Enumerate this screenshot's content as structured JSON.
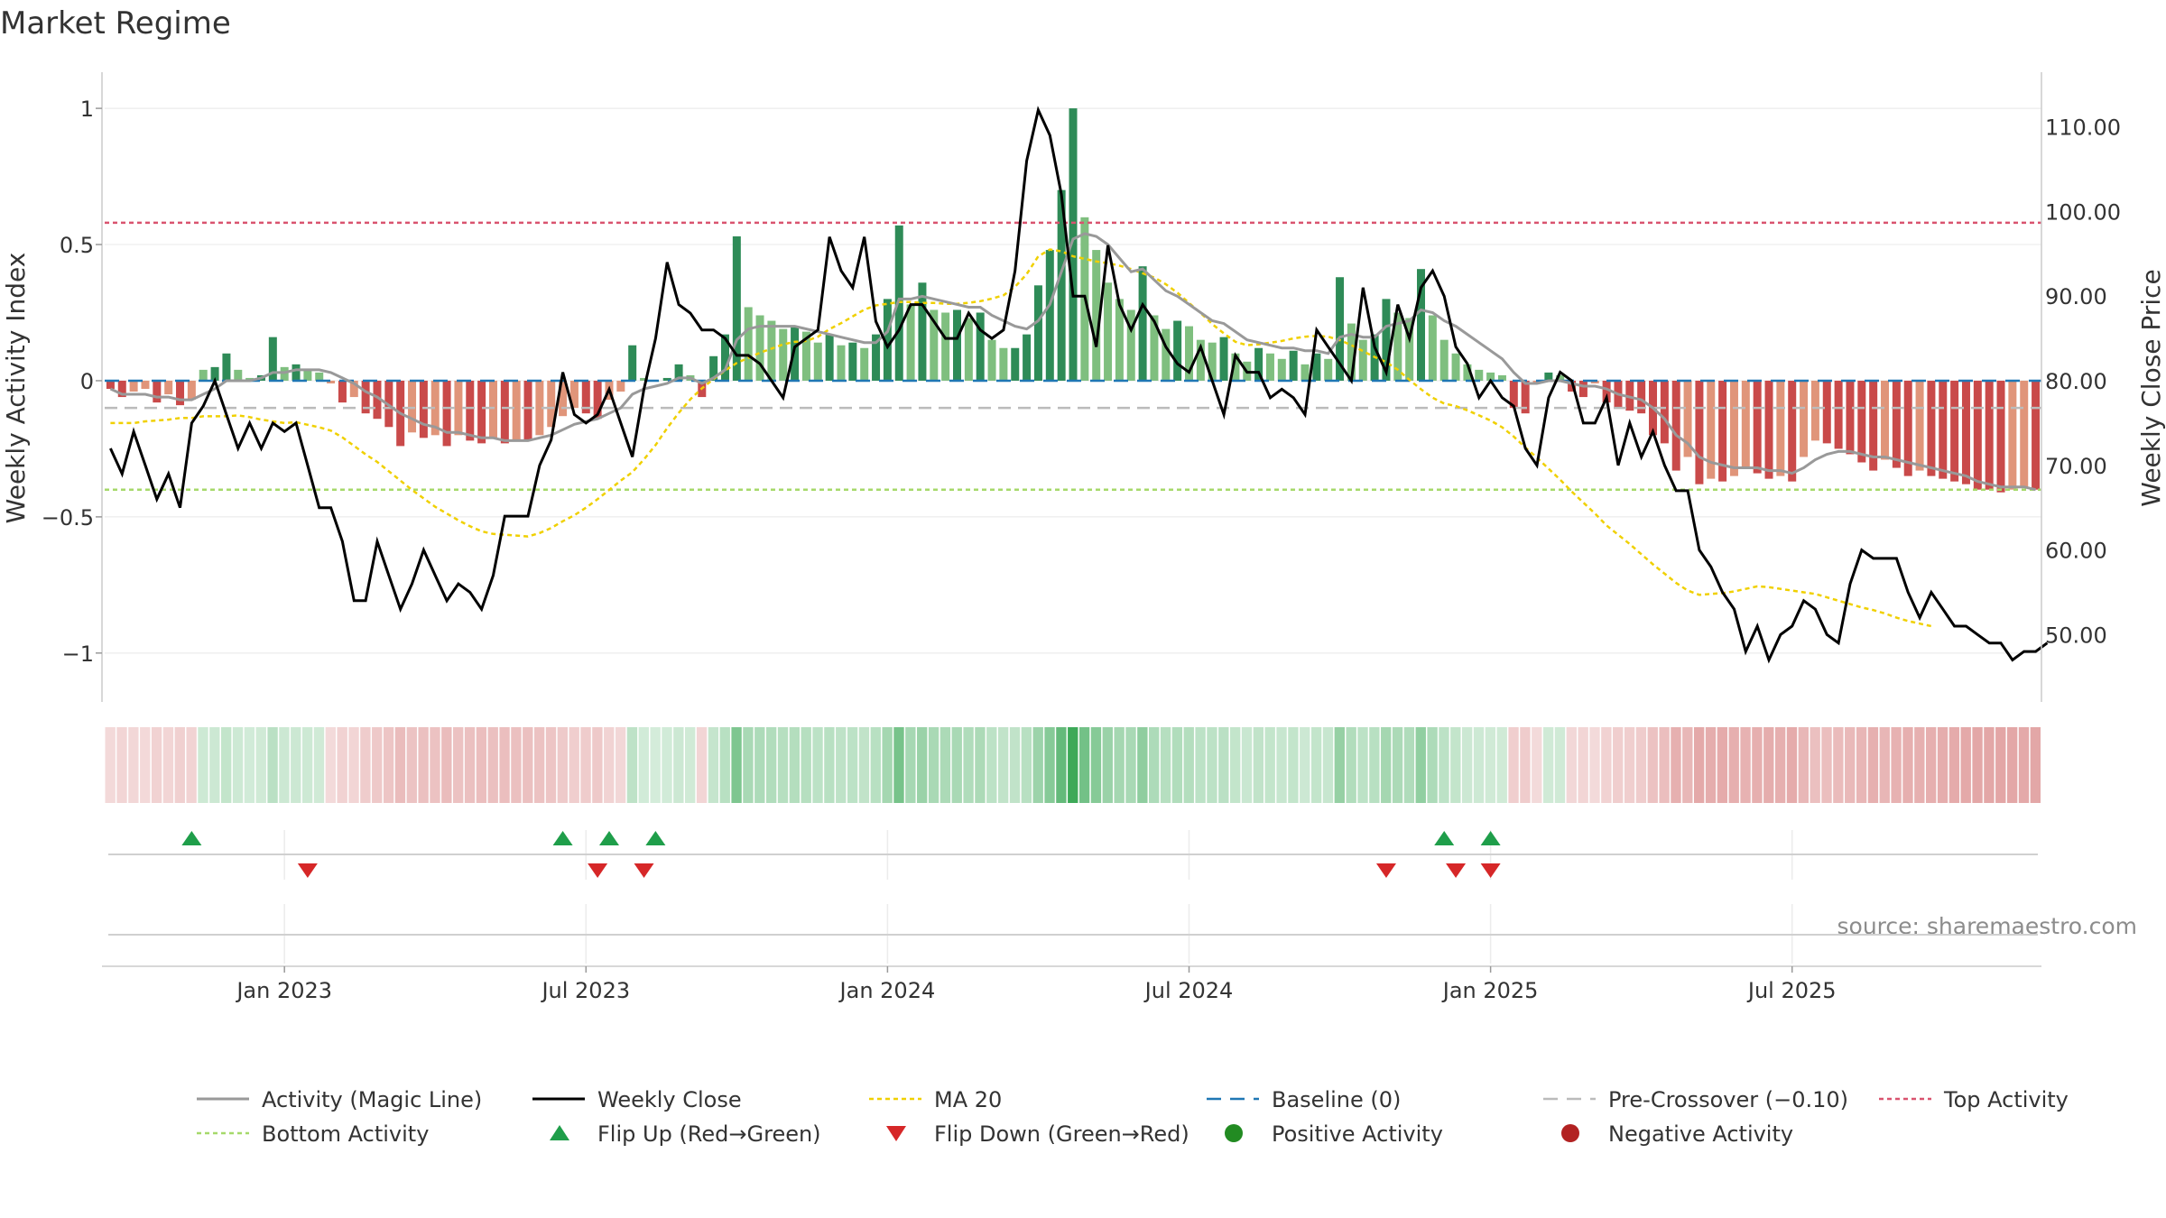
{
  "chart_data": {
    "type": "bar",
    "title": "Market Regime",
    "ylabel": "Weekly Activity Index",
    "y2label": "Weekly Close Price",
    "source": "source: sharemaestro.com",
    "ylim": [
      -1.1,
      1.05
    ],
    "y2lim": [
      44.6,
      113.8
    ],
    "yticks": [
      {
        "v": 1,
        "label": "1"
      },
      {
        "v": 0.5,
        "label": "0.5"
      },
      {
        "v": 0,
        "label": "0"
      },
      {
        "v": -0.5,
        "label": "−0.5"
      },
      {
        "v": -1,
        "label": "−1"
      }
    ],
    "y2ticks": [
      {
        "v": 110,
        "label": "110.00"
      },
      {
        "v": 100,
        "label": "100.00"
      },
      {
        "v": 90,
        "label": "90.00"
      },
      {
        "v": 80,
        "label": "80.00"
      },
      {
        "v": 70,
        "label": "70.00"
      },
      {
        "v": 60,
        "label": "60.00"
      },
      {
        "v": 50,
        "label": "50.00"
      }
    ],
    "xticks": [
      {
        "week": 15,
        "label": "Jan 2023"
      },
      {
        "week": 41,
        "label": "Jul 2023"
      },
      {
        "week": 67,
        "label": "Jan 2024"
      },
      {
        "week": 93,
        "label": "Jul 2024"
      },
      {
        "week": 119,
        "label": "Jan 2025"
      },
      {
        "week": 145,
        "label": "Jul 2025"
      }
    ],
    "grid": true,
    "legend_position": "bottom",
    "reference_lines": {
      "top_activity": 0.58,
      "bottom_activity": -0.4,
      "baseline": 0,
      "pre_crossover": -0.1
    },
    "colors": {
      "strong_green": "#2e8b57",
      "light_green": "#7fbf7f",
      "strong_red": "#c94a4a",
      "light_red": "#e0957a",
      "close_line": "#000000",
      "magic_line": "#999999",
      "ma20": "#f0d000",
      "baseline": "#1f77b4",
      "pre_crossover": "#bbbbbb",
      "top_activity": "#d9536f",
      "bottom_activity": "#a6d96a",
      "flip_up": "#1f9e4a",
      "flip_down": "#d62728",
      "positive": "#228b22",
      "negative": "#b22222"
    },
    "activity": [
      -0.03,
      -0.06,
      -0.04,
      -0.03,
      -0.08,
      -0.05,
      -0.09,
      -0.07,
      0.04,
      0.05,
      0.1,
      0.04,
      0.01,
      0.02,
      0.16,
      0.05,
      0.06,
      0.04,
      0.03,
      -0.01,
      -0.08,
      -0.06,
      -0.12,
      -0.14,
      -0.17,
      -0.24,
      -0.19,
      -0.21,
      -0.2,
      -0.24,
      -0.2,
      -0.22,
      -0.23,
      -0.21,
      -0.23,
      -0.22,
      -0.22,
      -0.2,
      -0.17,
      -0.13,
      -0.1,
      -0.12,
      -0.14,
      -0.07,
      -0.04,
      0.13,
      0.01,
      0,
      0.01,
      0.06,
      0.02,
      -0.06,
      0.09,
      0.17,
      0.53,
      0.27,
      0.24,
      0.22,
      0.19,
      0.2,
      0.18,
      0.14,
      0.17,
      0.13,
      0.14,
      0.12,
      0.17,
      0.3,
      0.57,
      0.28,
      0.36,
      0.26,
      0.25,
      0.26,
      0.23,
      0.25,
      0.15,
      0.12,
      0.12,
      0.17,
      0.35,
      0.48,
      0.7,
      1.0,
      0.6,
      0.48,
      0.36,
      0.3,
      0.26,
      0.42,
      0.24,
      0.19,
      0.22,
      0.2,
      0.15,
      0.14,
      0.16,
      0.1,
      0.07,
      0.12,
      0.1,
      0.08,
      0.11,
      0.06,
      0.1,
      0.08,
      0.38,
      0.21,
      0.15,
      0.17,
      0.3,
      0.25,
      0.23,
      0.41,
      0.24,
      0.15,
      0.1,
      0.06,
      0.04,
      0.03,
      0.02,
      -0.1,
      -0.12,
      -0.01,
      0.03,
      0.02,
      -0.04,
      -0.06,
      -0.01,
      -0.08,
      -0.1,
      -0.11,
      -0.12,
      -0.2,
      -0.23,
      -0.33,
      -0.28,
      -0.38,
      -0.36,
      -0.37,
      -0.35,
      -0.32,
      -0.34,
      -0.36,
      -0.35,
      -0.37,
      -0.28,
      -0.22,
      -0.23,
      -0.25,
      -0.27,
      -0.3,
      -0.33,
      -0.29,
      -0.32,
      -0.35,
      -0.33,
      -0.35,
      -0.36,
      -0.37,
      -0.38,
      -0.4,
      -0.4,
      -0.41,
      -0.4,
      -0.39,
      -0.4
    ],
    "weekly_close": [
      72,
      69,
      74,
      70,
      66,
      69,
      65,
      75,
      77,
      80,
      76,
      72,
      75,
      72,
      75,
      74,
      75,
      70,
      65,
      65,
      61,
      54,
      54,
      61,
      57,
      53,
      56,
      60,
      57,
      54,
      56,
      55,
      53,
      57,
      64,
      64,
      64,
      70,
      73,
      81,
      76,
      75,
      76,
      79,
      75,
      71,
      79,
      85,
      94,
      89,
      88,
      86,
      86,
      85,
      83,
      83,
      82,
      80,
      78,
      84,
      85,
      86,
      97,
      93,
      91,
      97,
      87,
      84,
      86,
      89,
      89,
      87,
      85,
      85,
      88,
      86,
      85,
      86,
      93,
      106,
      112,
      109,
      102,
      90,
      90,
      84,
      96,
      89,
      86,
      89,
      87,
      84,
      82,
      81,
      84,
      80,
      76,
      83,
      81,
      81,
      78,
      79,
      78,
      76,
      86,
      84,
      82,
      80,
      91,
      84,
      81,
      89,
      85,
      91,
      93,
      90,
      84,
      82,
      78,
      80,
      78,
      77,
      72,
      70,
      78,
      81,
      80,
      75,
      75,
      78,
      70,
      75,
      71,
      74,
      70,
      67,
      67,
      60,
      58,
      55,
      53,
      48,
      51,
      47,
      50,
      51,
      54,
      53,
      50,
      49,
      56,
      60,
      59,
      59,
      59,
      55,
      52,
      55,
      53,
      51,
      51,
      50,
      49,
      49,
      47,
      48,
      48,
      49
    ],
    "ma20": [
      75,
      75,
      75,
      75.2,
      75.3,
      75.4,
      75.6,
      75.6,
      75.8,
      75.8,
      75.8,
      75.9,
      75.7,
      75.4,
      75.2,
      75,
      75.1,
      74.8,
      74.5,
      74.1,
      73.3,
      72.3,
      71.3,
      70.4,
      69.3,
      68.2,
      67.1,
      66.1,
      65.1,
      64.3,
      63.5,
      62.8,
      62.2,
      61.9,
      61.8,
      61.7,
      61.6,
      62,
      62.6,
      63.4,
      64.1,
      65,
      66,
      67.1,
      68.2,
      69.2,
      70.7,
      72.4,
      74.4,
      76.2,
      77.8,
      79.1,
      80.2,
      81.2,
      82.1,
      82.7,
      83.3,
      83.8,
      84.3,
      84.6,
      84.7,
      85.2,
      86.1,
      86.8,
      87.6,
      88.4,
      88.9,
      89.1,
      89.3,
      89.3,
      89.2,
      89.2,
      89.1,
      89.1,
      89.2,
      89.4,
      89.7,
      90.1,
      91.1,
      92.6,
      94.7,
      95.5,
      95.3,
      94.7,
      94.4,
      94.1,
      93.9,
      93.6,
      93.2,
      92.7,
      92.2,
      91.4,
      90.4,
      89.2,
      88,
      86.7,
      85.6,
      84.6,
      84.2,
      84.3,
      84.5,
      84.7,
      85,
      85.2,
      85.3,
      85.2,
      84.8,
      84.2,
      83.5,
      82.8,
      82.2,
      81.3,
      80.1,
      79,
      78,
      77.3,
      77,
      76.5,
      75.9,
      75.3,
      74.5,
      73.4,
      72.1,
      70.9,
      69.6,
      68.3,
      66.9,
      65.6,
      64.3,
      62.9,
      61.8,
      60.7,
      59.5,
      58.3,
      57.2,
      56.1,
      55.2,
      54.7,
      54.8,
      54.9,
      55.1,
      55.4,
      55.7,
      55.6,
      55.4,
      55.2,
      55,
      54.8,
      54.4,
      54,
      53.6,
      53.2,
      52.9,
      52.5,
      52,
      51.6,
      51.3,
      51
    ],
    "magic_line": [
      -0.03,
      -0.05,
      -0.05,
      -0.05,
      -0.06,
      -0.06,
      -0.07,
      -0.07,
      -0.05,
      -0.03,
      0,
      0,
      0,
      0.01,
      0.03,
      0.03,
      0.04,
      0.04,
      0.04,
      0.03,
      0.01,
      -0.01,
      -0.04,
      -0.06,
      -0.09,
      -0.12,
      -0.14,
      -0.16,
      -0.17,
      -0.19,
      -0.19,
      -0.2,
      -0.21,
      -0.21,
      -0.22,
      -0.22,
      -0.22,
      -0.21,
      -0.2,
      -0.18,
      -0.16,
      -0.15,
      -0.14,
      -0.12,
      -0.1,
      -0.05,
      -0.03,
      -0.02,
      -0.01,
      0.01,
      0.01,
      -0.01,
      0.01,
      0.04,
      0.15,
      0.19,
      0.2,
      0.2,
      0.2,
      0.2,
      0.19,
      0.18,
      0.17,
      0.16,
      0.15,
      0.14,
      0.14,
      0.18,
      0.3,
      0.3,
      0.31,
      0.3,
      0.29,
      0.28,
      0.27,
      0.27,
      0.24,
      0.22,
      0.2,
      0.19,
      0.22,
      0.28,
      0.4,
      0.52,
      0.54,
      0.53,
      0.5,
      0.45,
      0.4,
      0.41,
      0.37,
      0.33,
      0.31,
      0.28,
      0.25,
      0.22,
      0.21,
      0.18,
      0.15,
      0.14,
      0.13,
      0.12,
      0.12,
      0.11,
      0.11,
      0.1,
      0.16,
      0.17,
      0.16,
      0.16,
      0.2,
      0.21,
      0.22,
      0.26,
      0.25,
      0.22,
      0.2,
      0.17,
      0.14,
      0.11,
      0.08,
      0.03,
      -0.01,
      -0.01,
      0,
      0,
      -0.01,
      -0.02,
      -0.02,
      -0.03,
      -0.05,
      -0.06,
      -0.07,
      -0.1,
      -0.14,
      -0.2,
      -0.23,
      -0.28,
      -0.3,
      -0.31,
      -0.32,
      -0.32,
      -0.32,
      -0.33,
      -0.33,
      -0.34,
      -0.32,
      -0.29,
      -0.27,
      -0.26,
      -0.26,
      -0.27,
      -0.28,
      -0.28,
      -0.29,
      -0.3,
      -0.31,
      -0.32,
      -0.33,
      -0.34,
      -0.35,
      -0.37,
      -0.38,
      -0.39,
      -0.39,
      -0.39,
      -0.4
    ],
    "flip_up_weeks": [
      7,
      39,
      43,
      47,
      115,
      119
    ],
    "flip_down_weeks": [
      17,
      42,
      46,
      110,
      116,
      119
    ],
    "legend": [
      {
        "key": "magic",
        "label": "Activity (Magic Line)"
      },
      {
        "key": "close",
        "label": "Weekly Close"
      },
      {
        "key": "ma20",
        "label": "MA 20"
      },
      {
        "key": "baseline",
        "label": "Baseline (0)"
      },
      {
        "key": "precross",
        "label": "Pre-Crossover (−0.10)"
      },
      {
        "key": "top",
        "label": "Top Activity"
      },
      {
        "key": "bottom",
        "label": "Bottom Activity"
      },
      {
        "key": "flipup",
        "label": "Flip Up (Red→Green)"
      },
      {
        "key": "flipdown",
        "label": "Flip Down (Green→Red)"
      },
      {
        "key": "positive",
        "label": "Positive Activity"
      },
      {
        "key": "negative",
        "label": "Negative Activity"
      }
    ]
  }
}
